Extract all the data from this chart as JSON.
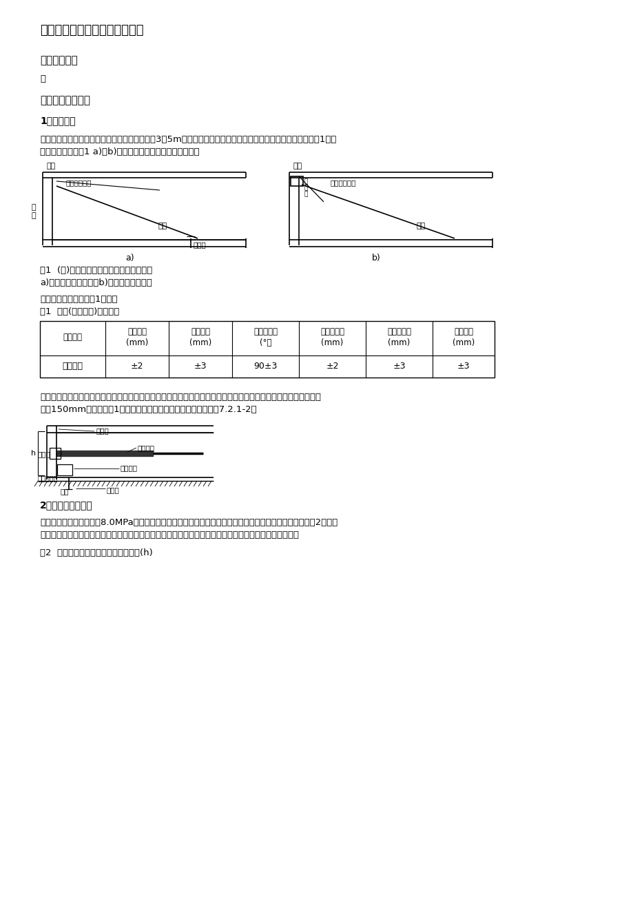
{
  "title": "厂区道路及过路管施工技术交底",
  "section1": "一、工程概况",
  "section1_content": "略",
  "section2": "二、质量交底内容",
  "subsection1": "1、模板支设",
  "para1_line1": "钢模板的高度应为面板设计厚度，模板长度宜为3～5m。需设置拉杆时，模板应设拉杆插入孔。每米模板应设置1处支",
  "para1_line2": "撑固定装置，见图1 a)、b)。模板垂直度用垫木楔方法调整。",
  "fig_caption1": "图1  (槽)钢模板焊接钢筋或角钢固定示意图",
  "fig_caption1a": "a)焊接钢筋固定支架；b)焊接角钢固定支架",
  "table1_pre": "模板的精确度应符合表1规定。",
  "table1_name": "表1  模板(加工矫正)允许偏差",
  "table1_headers": [
    "施工方式",
    "高度偏差\n(mm)",
    "局部变形\n(mm)",
    "垂直边夹角\n(°）",
    "顶面平整度\n(mm)",
    "侧面平整度\n(mm)",
    "纵向变形\n(mm)"
  ],
  "table1_data": [
    [
      "小型机具",
      "±2",
      "±3",
      "90±3",
      "±2",
      "±3",
      "±3"
    ]
  ],
  "para2_line1": "横向施工缝端模板应按设计规定的传力杆直径和间距设置传力杆插入孔和定位套管。两边缘传力杆到自由边距离不宜",
  "para2_line2": "小于150mm。每米设置1个垂直固定孔套。工作缝端模侧立面见图7.2.1-2。",
  "subsection2": "2、模板拆除及矫正",
  "para3_line1": "当混凝土抗压强度不小于8.0MPa方可拆模。当缺乏强度实测数据时，边侧模板的允许最早拆模时间宜符合表2的规定",
  "para3_line2": "。达不到要求，不能拆除端模时，可空出一块面板，重新起头摊铺，空出的面板待两端均可拆模后再补做。",
  "table2_name": "表2  混凝土路面板的允许最早拆模时间(h)",
  "bg_color": "#ffffff"
}
